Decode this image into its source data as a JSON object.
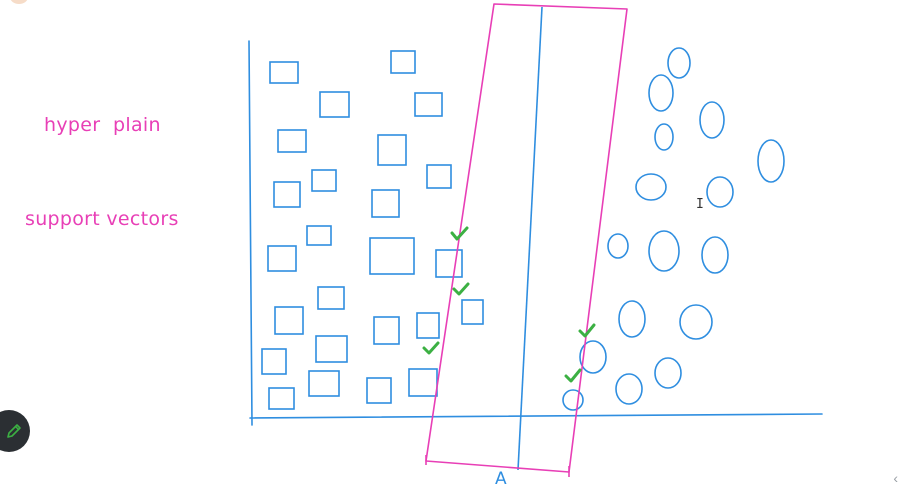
{
  "labels": {
    "hyperplane": "hyper  plain",
    "support_vectors": "support vectors",
    "margin_axis": "A"
  },
  "colors": {
    "shapes": "#2f8ee0",
    "margin_band": "#e83fb6",
    "labels": "#e83fb6",
    "checkmarks": "#3cb043"
  },
  "icons": {
    "tool": "pen-icon",
    "scroll": "chevron-left-icon",
    "cursor": "text-cursor-icon"
  },
  "ui": {
    "cursor_glyph": "I",
    "chevron_glyph": "‹"
  }
}
